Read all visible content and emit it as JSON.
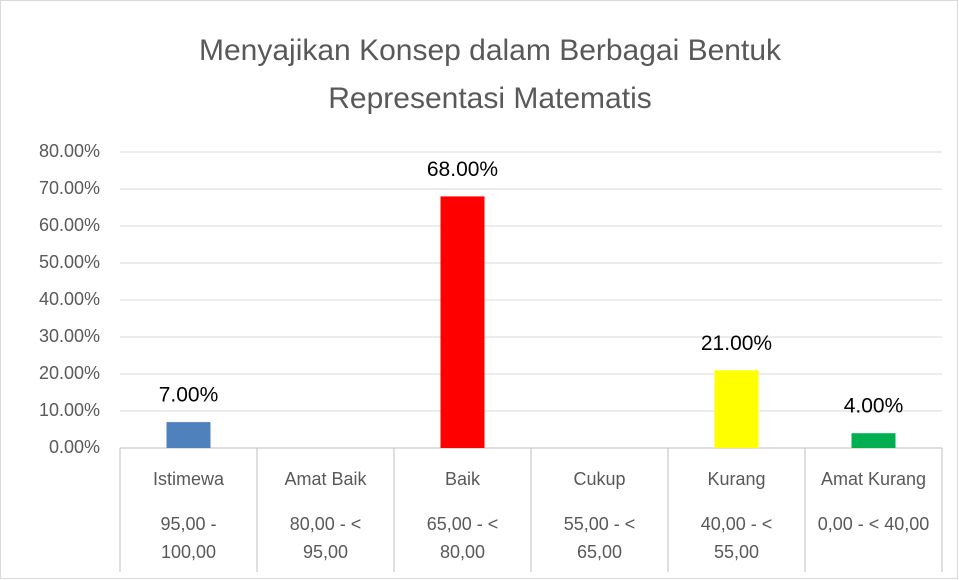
{
  "chart_data": {
    "type": "bar",
    "title": [
      "Menyajikan Konsep dalam Berbagai Bentuk",
      "Representasi Matematis"
    ],
    "categories": [
      "Istimewa",
      "Amat Baik",
      "Baik",
      "Cukup",
      "Kurang",
      "Amat Kurang"
    ],
    "category_ranges": [
      [
        "95,00 -",
        "100,00"
      ],
      [
        "80,00 - <",
        "95,00"
      ],
      [
        "65,00 - <",
        "80,00"
      ],
      [
        "55,00 - <",
        "65,00"
      ],
      [
        "40,00 - <",
        "55,00"
      ],
      [
        "0,00 - < 40,00"
      ]
    ],
    "values": [
      7,
      0,
      68,
      0,
      21,
      4
    ],
    "value_labels": [
      "7.00%",
      null,
      "68.00%",
      null,
      "21.00%",
      "4.00%"
    ],
    "colors": [
      "#4f81bd",
      null,
      "#ff0000",
      null,
      "#ffff00",
      "#00b050"
    ],
    "ylim": [
      0,
      80
    ],
    "yticks": [
      {
        "value": 0,
        "label": "0.00%"
      },
      {
        "value": 10,
        "label": "10.00%"
      },
      {
        "value": 20,
        "label": "20.00%"
      },
      {
        "value": 30,
        "label": "30.00%"
      },
      {
        "value": 40,
        "label": "40.00%"
      },
      {
        "value": 50,
        "label": "50.00%"
      },
      {
        "value": 60,
        "label": "60.00%"
      },
      {
        "value": 70,
        "label": "70.00%"
      },
      {
        "value": 80,
        "label": "80.00%"
      }
    ],
    "grid": true
  }
}
